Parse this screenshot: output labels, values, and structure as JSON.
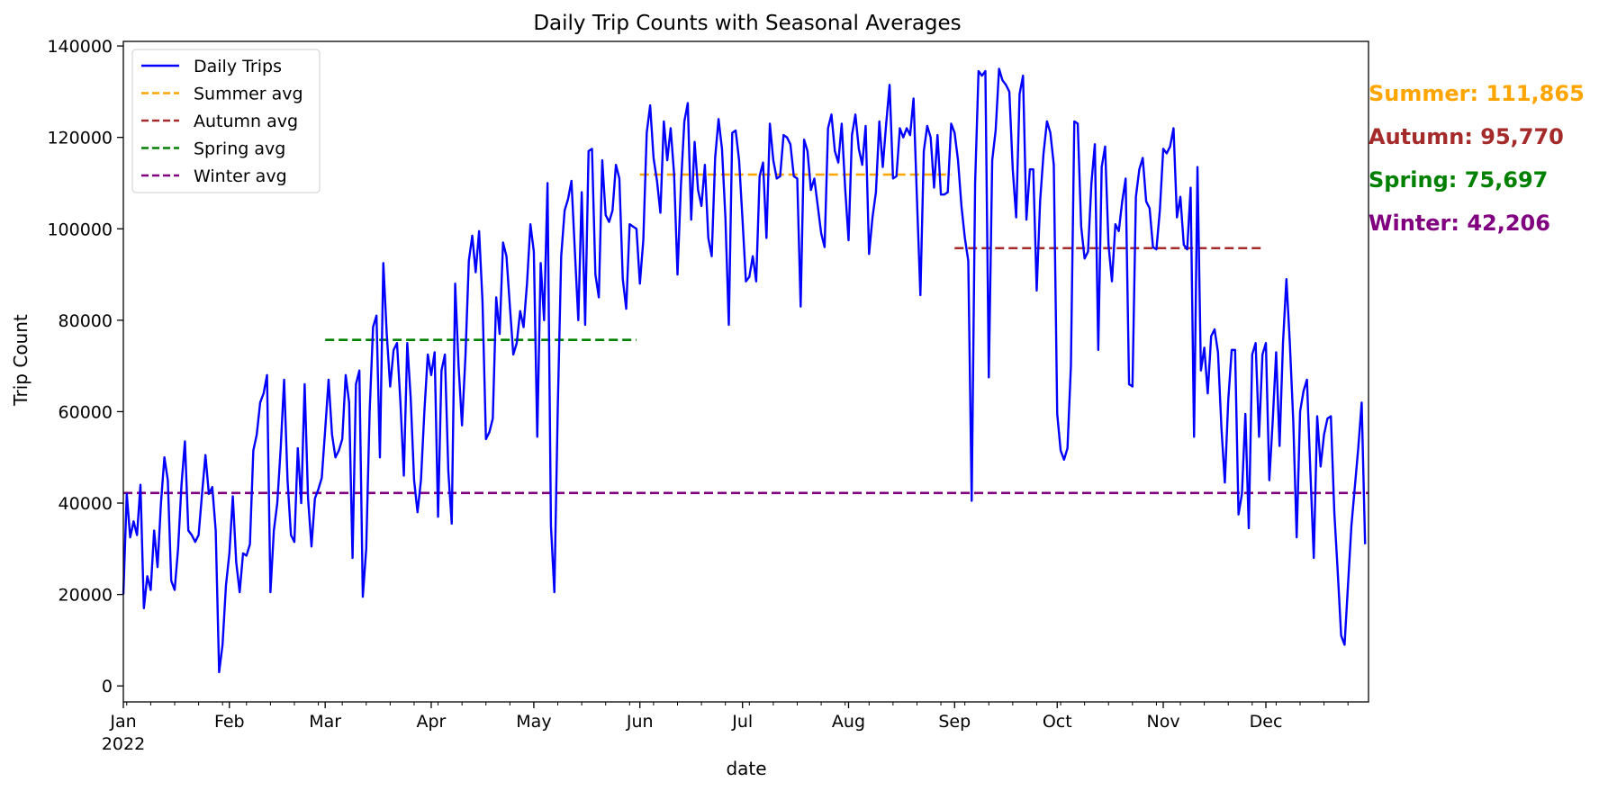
{
  "chart_data": {
    "type": "line",
    "title": "Daily Trip Counts with Seasonal Averages",
    "xlabel": "date",
    "ylabel": "Trip Count",
    "year": "2022",
    "xlim": [
      "2022-01-01",
      "2022-12-31"
    ],
    "ylim": [
      -3500,
      141000
    ],
    "yticks": [
      0,
      20000,
      40000,
      60000,
      80000,
      100000,
      120000,
      140000
    ],
    "xticks": [
      {
        "date": "2022-01-01",
        "label": "Jan"
      },
      {
        "date": "2022-02-01",
        "label": "Feb"
      },
      {
        "date": "2022-03-01",
        "label": "Mar"
      },
      {
        "date": "2022-04-01",
        "label": "Apr"
      },
      {
        "date": "2022-05-01",
        "label": "May"
      },
      {
        "date": "2022-06-01",
        "label": "Jun"
      },
      {
        "date": "2022-07-01",
        "label": "Jul"
      },
      {
        "date": "2022-08-01",
        "label": "Aug"
      },
      {
        "date": "2022-09-01",
        "label": "Sep"
      },
      {
        "date": "2022-10-01",
        "label": "Oct"
      },
      {
        "date": "2022-11-01",
        "label": "Nov"
      },
      {
        "date": "2022-12-01",
        "label": "Dec"
      }
    ],
    "grid": false,
    "legend_position": "upper-left",
    "legend": [
      "Daily Trips",
      "Summer avg",
      "Autumn avg",
      "Spring avg",
      "Winter avg"
    ],
    "series": [
      {
        "name": "Daily Trips",
        "color": "#0000ff",
        "start_date": "2022-01-01",
        "values": [
          20000,
          42000,
          32500,
          36000,
          33000,
          44000,
          17000,
          24000,
          21000,
          34000,
          26000,
          40000,
          50000,
          45000,
          23000,
          21000,
          30000,
          44000,
          53500,
          34000,
          33000,
          31500,
          33000,
          42000,
          50500,
          42000,
          43500,
          34000,
          3000,
          9000,
          22000,
          29000,
          41500,
          27000,
          20500,
          29000,
          28500,
          31000,
          51500,
          55000,
          62000,
          64000,
          68000,
          20500,
          34000,
          40000,
          52000,
          67000,
          45000,
          33000,
          31500,
          52000,
          40000,
          66000,
          41000,
          30500,
          41000,
          43000,
          45500,
          56000,
          67000,
          55000,
          50000,
          51500,
          54000,
          68000,
          62000,
          28000,
          66000,
          69000,
          19500,
          30000,
          60000,
          78500,
          81000,
          50000,
          92500,
          77000,
          65500,
          73500,
          75000,
          62000,
          46000,
          75000,
          63000,
          45000,
          38000,
          45000,
          60000,
          72500,
          68000,
          73000,
          37000,
          69000,
          72500,
          47000,
          35500,
          88000,
          70000,
          57000,
          72000,
          93000,
          98500,
          90500,
          99500,
          84000,
          54000,
          55500,
          58500,
          85000,
          77000,
          97000,
          94000,
          83000,
          72500,
          75000,
          82000,
          78500,
          88000,
          101000,
          95000,
          54500,
          92500,
          80000,
          110000,
          35000,
          20500,
          61000,
          94000,
          104000,
          106500,
          110500,
          95000,
          80000,
          108000,
          79000,
          117000,
          117500,
          90000,
          85000,
          115000,
          103000,
          101500,
          104000,
          114000,
          111000,
          89000,
          82500,
          101000,
          100500,
          100000,
          88000,
          97500,
          121000,
          127000,
          115500,
          110500,
          103500,
          123500,
          115000,
          122000,
          112000,
          90000,
          109500,
          123500,
          127500,
          102000,
          119000,
          108500,
          105000,
          114000,
          98000,
          94000,
          115500,
          124000,
          117500,
          102500,
          79000,
          121000,
          121500,
          115000,
          102000,
          88500,
          89500,
          94000,
          88500,
          111500,
          114500,
          98000,
          123000,
          115000,
          111000,
          111500,
          120500,
          120000,
          118500,
          111500,
          111000,
          83000,
          119500,
          117000,
          108500,
          111000,
          105000,
          99000,
          96000,
          122000,
          125000,
          117000,
          114500,
          123000,
          109000,
          97500,
          120500,
          125000,
          117500,
          114000,
          122500,
          94500,
          102500,
          108000,
          123500,
          113500,
          123000,
          131500,
          111000,
          111500,
          122000,
          120000,
          122000,
          120500,
          128500,
          106500,
          85500,
          117000,
          122500,
          120000,
          109000,
          120500,
          107500,
          107500,
          108000,
          123000,
          121000,
          115000,
          105000,
          98000,
          93000,
          40500,
          110000,
          134500,
          133500,
          134500,
          67500,
          115000,
          121500,
          135000,
          132500,
          131500,
          130000,
          113000,
          102500,
          129500,
          133500,
          102000,
          113000,
          113000,
          86500,
          106000,
          116500,
          123500,
          121000,
          114000,
          59500,
          51500,
          49500,
          52000,
          70000,
          123500,
          123000,
          100500,
          93500,
          95000,
          110000,
          118500,
          73500,
          113500,
          118000,
          96500,
          88500,
          101000,
          99500,
          106000,
          111000,
          66000,
          65500,
          107000,
          113000,
          115500,
          106000,
          104500,
          96000,
          95500,
          104000,
          117500,
          116500,
          118000,
          122000,
          102500,
          107000,
          96500,
          95500,
          109000,
          54500,
          113500,
          69000,
          74000,
          64000,
          76500,
          78000,
          73000,
          56500,
          44500,
          62500,
          73500,
          73500,
          37500,
          42000,
          59500,
          34500,
          72500,
          75000,
          54500,
          72500,
          75000,
          45000,
          58000,
          73000,
          52500,
          75000,
          89000,
          75000,
          58000,
          32500,
          60000,
          64500,
          67000,
          47000,
          28000,
          59000,
          48000,
          55000,
          58500,
          59000,
          38000,
          25000,
          11000,
          9000,
          22000,
          35000,
          43500,
          52000,
          62000,
          31000
        ]
      }
    ],
    "seasonal_averages": [
      {
        "name": "Summer avg",
        "label": "Summer: 111,865",
        "value": 111865,
        "start": "2022-06-01",
        "end": "2022-08-31",
        "color": "#ffa500"
      },
      {
        "name": "Autumn avg",
        "label": "Autumn: 95,770",
        "value": 95770,
        "start": "2022-09-01",
        "end": "2022-11-30",
        "color": "#a52a2a"
      },
      {
        "name": "Spring avg",
        "label": "Spring: 75,697",
        "value": 75697,
        "start": "2022-03-01",
        "end": "2022-05-31",
        "color": "#008000"
      },
      {
        "name": "Winter avg",
        "label": "Winter: 42,206",
        "value": 42206,
        "start": "2022-01-01",
        "end": "2022-12-31",
        "color": "#800080"
      }
    ]
  }
}
